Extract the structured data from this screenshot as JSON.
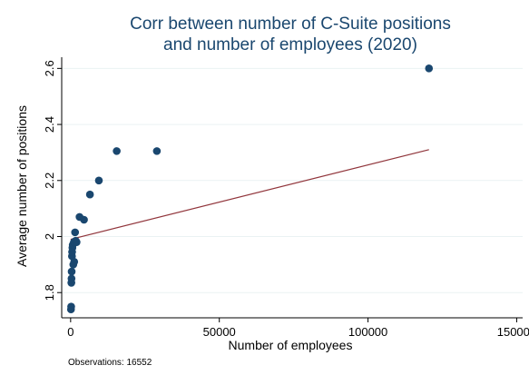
{
  "chart_data": {
    "type": "scatter",
    "title_lines": [
      "Corr between number of C-Suite positions",
      "and number of employees (2020)"
    ],
    "xlabel": "Number of employees",
    "ylabel": "Average number of positions",
    "note": "Observations: 16552",
    "xlim": [
      -3000,
      152000
    ],
    "ylim": [
      1.71,
      2.64
    ],
    "x_ticks": [
      0,
      50000,
      100000,
      150000
    ],
    "x_tick_labels": [
      "0",
      "50000",
      "100000",
      "150000"
    ],
    "y_ticks": [
      1.8,
      2.0,
      2.2,
      2.4,
      2.6
    ],
    "y_tick_labels": [
      "1.8",
      "2",
      "2.2",
      "2.4",
      "2.6"
    ],
    "grid": "horizontal",
    "legend": "none",
    "colors": {
      "title": "#1a476f",
      "points": "#1a476f",
      "fit_line": "#90353b",
      "grid": "#eaf2f3"
    },
    "series": [
      {
        "type": "scatter",
        "x": [
          120,
          180,
          250,
          300,
          350,
          450,
          500,
          600,
          700,
          900,
          1100,
          1200,
          1300,
          1500,
          1700,
          2000,
          3000,
          4500,
          6500,
          9500,
          15500,
          29000,
          120500
        ],
        "y": [
          1.74,
          1.75,
          1.835,
          1.85,
          1.875,
          1.93,
          1.945,
          1.96,
          1.97,
          1.9,
          1.98,
          1.91,
          1.98,
          2.015,
          1.985,
          1.98,
          2.07,
          2.06,
          2.15,
          2.2,
          2.305,
          2.305,
          2.6
        ]
      },
      {
        "type": "line",
        "x": [
          0,
          120500
        ],
        "y": [
          1.99,
          2.31
        ]
      }
    ]
  }
}
